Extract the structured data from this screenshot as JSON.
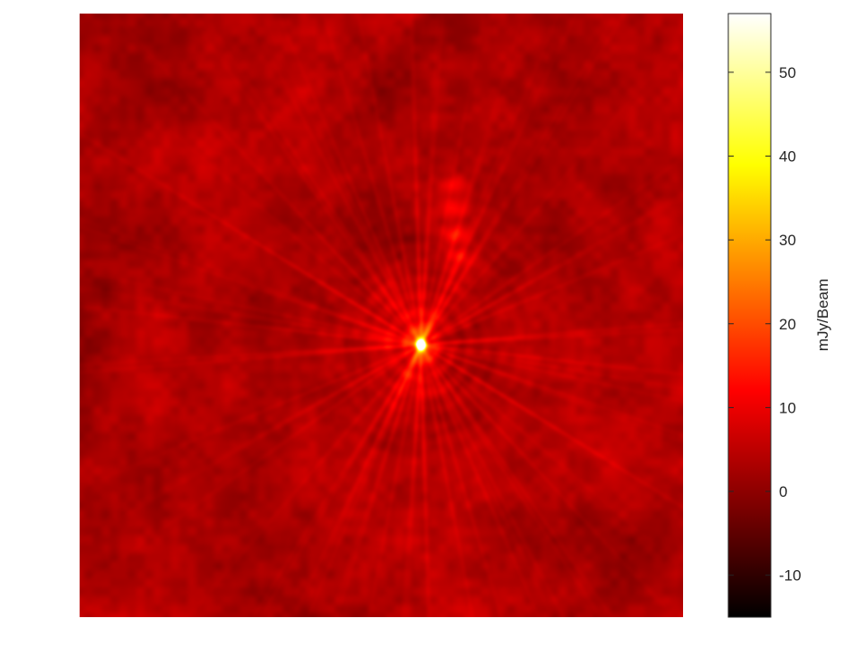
{
  "chart_data": {
    "type": "heatmap",
    "title": "",
    "xlabel": "",
    "ylabel": "",
    "axes_visible": false,
    "colormap": "hot",
    "colorbar": {
      "label": "mJy/Beam",
      "range": [
        -15,
        57
      ],
      "ticks": [
        50,
        40,
        30,
        20,
        10,
        0,
        -10
      ],
      "tick_labels": [
        "50",
        "40",
        "30",
        "20",
        "10",
        "0",
        "-10"
      ],
      "placement": "right"
    },
    "features": {
      "background_level": 3,
      "point_source": {
        "x": 0.565,
        "y": 0.548,
        "peak": 57
      },
      "extended_emission": {
        "x_start": 0.63,
        "y_start": 0.45,
        "x_end": 0.61,
        "y_end": 0.18,
        "peak": 22
      },
      "sidelobe_pattern": "radial streaks around point source"
    }
  }
}
